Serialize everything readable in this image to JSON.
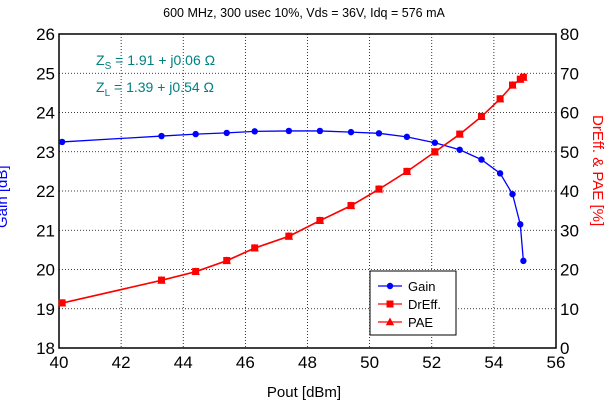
{
  "title": "600 MHz, 300 usec 10%, Vds = 36V, Idq = 576 mA",
  "impedance": {
    "zs_prefix": "Z",
    "zs_sub": "S",
    "zs_value": " =  1.91 + j0.06  Ω",
    "zl_prefix": "Z",
    "zl_sub": "L",
    "zl_value": " =  1.39 + j0.54  Ω"
  },
  "colors": {
    "gain": "#0000ff",
    "dreff": "#ff0000",
    "pae": "#ff0000",
    "impedance_text": "#008080"
  },
  "chart_data": {
    "type": "line",
    "title": "600 MHz, 300 usec 10%, Vds = 36V, Idq = 576 mA",
    "xlabel": "Pout [dBm]",
    "ylabel_left": "Gain [dB]",
    "ylabel_right": "DrEff. & PAE [%]",
    "xlim": [
      40,
      56
    ],
    "ylim_left": [
      18,
      26
    ],
    "ylim_right": [
      0,
      80
    ],
    "x_ticks": [
      "40",
      "42",
      "44",
      "46",
      "48",
      "50",
      "52",
      "54",
      "56"
    ],
    "y_left_ticks": [
      "18",
      "19",
      "20",
      "21",
      "22",
      "23",
      "24",
      "25",
      "26"
    ],
    "y_right_ticks": [
      "0",
      "10",
      "20",
      "30",
      "40",
      "50",
      "60",
      "70",
      "80"
    ],
    "grid": true,
    "legend_position": "lower-right",
    "series": [
      {
        "name": "Gain",
        "axis": "left",
        "marker": "circle",
        "x": [
          40.1,
          43.3,
          44.4,
          45.4,
          46.3,
          47.4,
          48.4,
          49.4,
          50.3,
          51.2,
          52.1,
          52.9,
          53.6,
          54.2,
          54.6,
          54.85,
          54.95
        ],
        "y": [
          23.25,
          23.4,
          23.45,
          23.48,
          23.52,
          23.53,
          23.53,
          23.5,
          23.47,
          23.38,
          23.23,
          23.05,
          22.8,
          22.45,
          21.92,
          21.15,
          20.22
        ]
      },
      {
        "name": "DrEff.",
        "axis": "right",
        "marker": "square",
        "x": [
          40.1,
          43.3,
          44.4,
          45.4,
          46.3,
          47.4,
          48.4,
          49.4,
          50.3,
          51.2,
          52.1,
          52.9,
          53.6,
          54.2,
          54.6,
          54.85,
          54.95
        ],
        "y": [
          11.5,
          17.3,
          19.5,
          22.3,
          25.5,
          28.5,
          32.5,
          36.3,
          40.5,
          45.0,
          50.0,
          54.5,
          59.0,
          63.5,
          67.0,
          68.5,
          69.0
        ]
      },
      {
        "name": "PAE",
        "axis": "right",
        "marker": "triangle",
        "x": [
          40.1,
          43.3,
          44.4,
          45.4,
          46.3,
          47.4,
          48.4,
          49.4,
          50.3,
          51.2,
          52.1,
          52.9,
          53.6,
          54.2,
          54.6,
          54.85,
          54.95
        ],
        "y": [
          11.4,
          17.2,
          19.4,
          22.2,
          25.4,
          28.4,
          32.4,
          36.2,
          40.4,
          44.9,
          49.9,
          54.4,
          58.9,
          63.4,
          66.9,
          68.4,
          68.9
        ]
      }
    ]
  }
}
